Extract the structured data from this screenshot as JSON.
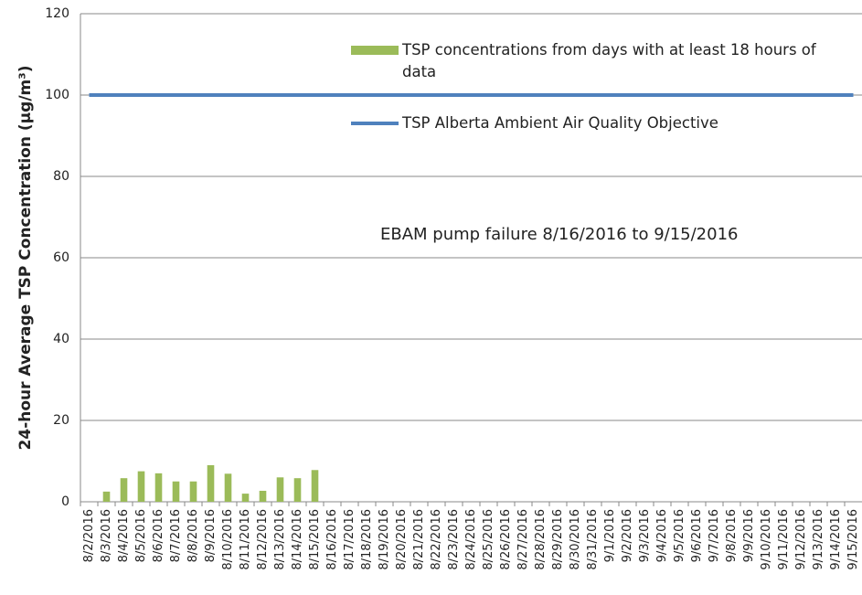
{
  "chart_data": {
    "type": "bar",
    "ylabel": "24-hour Average TSP Concentration (µg/m³)",
    "annotation": "EBAM pump failure 8/16/2016 to 9/15/2016",
    "categories": [
      "8/2/2016",
      "8/3/2016",
      "8/4/2016",
      "8/5/2016",
      "8/6/2016",
      "8/7/2016",
      "8/8/2016",
      "8/9/2016",
      "8/10/2016",
      "8/11/2016",
      "8/12/2016",
      "8/13/2016",
      "8/14/2016",
      "8/15/2016",
      "8/16/2016",
      "8/17/2016",
      "8/18/2016",
      "8/19/2016",
      "8/20/2016",
      "8/21/2016",
      "8/22/2016",
      "8/23/2016",
      "8/24/2016",
      "8/25/2016",
      "8/26/2016",
      "8/27/2016",
      "8/28/2016",
      "8/29/2016",
      "8/30/2016",
      "8/31/2016",
      "9/1/2016",
      "9/2/2016",
      "9/3/2016",
      "9/4/2016",
      "9/5/2016",
      "9/6/2016",
      "9/7/2016",
      "9/8/2016",
      "9/9/2016",
      "9/10/2016",
      "9/11/2016",
      "9/12/2016",
      "9/13/2016",
      "9/14/2016",
      "9/15/2016"
    ],
    "series": [
      {
        "name": "TSP concentrations from days with at least 18 hours of data",
        "type": "bar",
        "color": "#9bbb59",
        "values": [
          null,
          2.5,
          5.8,
          7.5,
          7,
          5,
          5,
          9,
          6.9,
          2,
          2.7,
          6,
          5.8,
          7.8,
          null,
          null,
          null,
          null,
          null,
          null,
          null,
          null,
          null,
          null,
          null,
          null,
          null,
          null,
          null,
          null,
          null,
          null,
          null,
          null,
          null,
          null,
          null,
          null,
          null,
          null,
          null,
          null,
          null,
          null,
          null
        ]
      },
      {
        "name": "TSP Alberta Ambient Air Quality Objective",
        "type": "line",
        "color": "#4f81bd",
        "values": [
          100,
          100,
          100,
          100,
          100,
          100,
          100,
          100,
          100,
          100,
          100,
          100,
          100,
          100,
          100,
          100,
          100,
          100,
          100,
          100,
          100,
          100,
          100,
          100,
          100,
          100,
          100,
          100,
          100,
          100,
          100,
          100,
          100,
          100,
          100,
          100,
          100,
          100,
          100,
          100,
          100,
          100,
          100,
          100,
          100
        ]
      }
    ],
    "ylim": [
      0,
      120
    ],
    "yticks": [
      0,
      20,
      40,
      60,
      80,
      100,
      120
    ],
    "grid": true
  }
}
